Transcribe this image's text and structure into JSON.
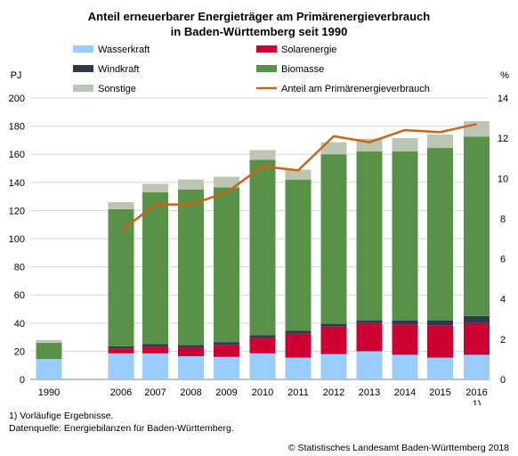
{
  "title_line1": "Anteil erneuerbarer Energieträger am Primärenergieverbrauch",
  "title_line2": "in Baden-Württemberg seit 1990",
  "footnote": "1) Vorläufige Ergebnisse.",
  "source": "Datenquelle: Energiebilanzen für Baden-Württemberg.",
  "copyright": "© Statistisches Landesamt Baden-Württemberg 2018",
  "chart_data": {
    "type": "bar",
    "stacked": true,
    "categories": [
      "1990",
      "2006",
      "2007",
      "2008",
      "2009",
      "2010",
      "2011",
      "2012",
      "2013",
      "2014",
      "2015",
      "2016"
    ],
    "category_notes": {
      "2016": "1)"
    },
    "ylabel": "PJ",
    "ylim": [
      0,
      200
    ],
    "yticks": [
      0,
      20,
      40,
      60,
      80,
      100,
      120,
      140,
      160,
      180,
      200
    ],
    "y2label": "%",
    "y2lim": [
      0,
      14
    ],
    "y2ticks": [
      0,
      2,
      4,
      6,
      8,
      10,
      12,
      14
    ],
    "grid": true,
    "legend_position": "top",
    "series": [
      {
        "name": "Wasserkraft",
        "color": "#99ccff",
        "values": [
          14.5,
          18.5,
          18.5,
          16.5,
          16,
          18.5,
          15.5,
          18,
          20,
          17.5,
          15.5,
          17.5
        ]
      },
      {
        "name": "Solarenergie",
        "color": "#cc0033",
        "values": [
          0,
          3.5,
          4.5,
          6,
          8.5,
          11,
          17,
          19.5,
          20,
          21.5,
          23,
          22.5
        ]
      },
      {
        "name": "Windkraft",
        "color": "#2f3a4a",
        "values": [
          0,
          1.5,
          2,
          2,
          2,
          2,
          2,
          2,
          2,
          3,
          3.5,
          5
        ]
      },
      {
        "name": "Biomasse",
        "color": "#5a9148",
        "values": [
          11.5,
          97.5,
          108,
          110.5,
          110,
          124.5,
          107.5,
          120.5,
          120,
          120,
          122.5,
          127.5
        ]
      },
      {
        "name": "Sonstige",
        "color": "#bcc6b3",
        "values": [
          2,
          5,
          6,
          7,
          7.5,
          7,
          7,
          8.5,
          9,
          9.5,
          9.5,
          11
        ]
      }
    ],
    "line_series": {
      "name": "Anteil am Primärenergieverbrauch",
      "color": "#c8651b",
      "axis": "right",
      "values": [
        null,
        7.4,
        8.7,
        8.7,
        9.3,
        10.6,
        10.4,
        12.1,
        11.8,
        12.4,
        12.3,
        12.7
      ]
    }
  }
}
